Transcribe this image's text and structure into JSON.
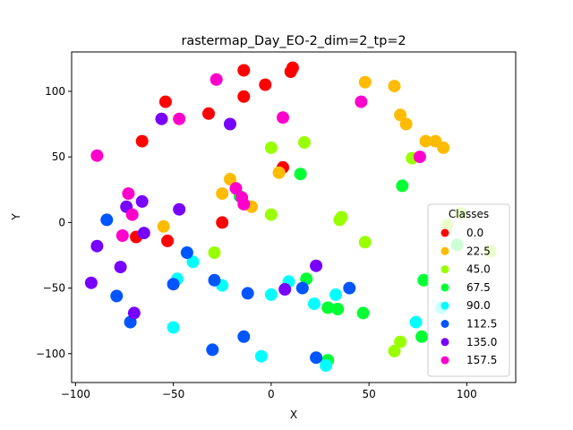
{
  "chart_data": {
    "type": "scatter",
    "title": "rastermap_Day_EO-2_dim=2_tp=2",
    "xlabel": "X",
    "ylabel": "Y",
    "xlim": [
      -102,
      125
    ],
    "ylim": [
      -122,
      130
    ],
    "xticks": [
      -100,
      -50,
      0,
      50,
      100
    ],
    "yticks": [
      -100,
      -50,
      0,
      50,
      100
    ],
    "grid": false,
    "legend": {
      "title": "Classes",
      "placement": "lower-right",
      "entries": [
        "0.0",
        "22.5",
        "45.0",
        "67.5",
        "90.0",
        "112.5",
        "135.0",
        "157.5"
      ]
    },
    "series": [
      {
        "name": "0.0",
        "color": "#ff0000",
        "points": [
          [
            -14,
            116
          ],
          [
            11,
            118
          ],
          [
            10,
            115
          ],
          [
            -3,
            105
          ],
          [
            -14,
            96
          ],
          [
            -54,
            92
          ],
          [
            -32,
            83
          ],
          [
            -66,
            62
          ],
          [
            6,
            42
          ],
          [
            -25,
            0
          ],
          [
            -69,
            -11
          ],
          [
            -53,
            -14
          ]
        ]
      },
      {
        "name": "22.5",
        "color": "#ffbb00",
        "points": [
          [
            48,
            107
          ],
          [
            63,
            104
          ],
          [
            66,
            82
          ],
          [
            69,
            75
          ],
          [
            79,
            62
          ],
          [
            84,
            62
          ],
          [
            88,
            57
          ],
          [
            -21,
            33
          ],
          [
            -25,
            22
          ],
          [
            -10,
            12
          ],
          [
            4,
            38
          ],
          [
            -55,
            -3
          ]
        ]
      },
      {
        "name": "45.0",
        "color": "#99ff00",
        "points": [
          [
            0,
            57
          ],
          [
            17,
            61
          ],
          [
            72,
            49
          ],
          [
            36,
            4
          ],
          [
            35,
            2
          ],
          [
            48,
            -15
          ],
          [
            0,
            6
          ],
          [
            -29,
            -23
          ],
          [
            90,
            -2
          ],
          [
            112,
            -22
          ],
          [
            66,
            -91
          ],
          [
            63,
            -98
          ],
          [
            97,
            7
          ]
        ]
      },
      {
        "name": "67.5",
        "color": "#00ff33",
        "points": [
          [
            15,
            37
          ],
          [
            67,
            28
          ],
          [
            -16,
            20
          ],
          [
            95,
            -17
          ],
          [
            78,
            -44
          ],
          [
            18,
            -43
          ],
          [
            47,
            -69
          ],
          [
            29,
            -65
          ],
          [
            34,
            -66
          ],
          [
            77,
            -87
          ],
          [
            29,
            -105
          ]
        ]
      },
      {
        "name": "90.0",
        "color": "#00ffff",
        "points": [
          [
            -40,
            -30
          ],
          [
            -48,
            -43
          ],
          [
            -25,
            -48
          ],
          [
            0,
            -55
          ],
          [
            9,
            -45
          ],
          [
            22,
            -62
          ],
          [
            33,
            -55
          ],
          [
            74,
            -76
          ],
          [
            87,
            -65
          ],
          [
            -50,
            -80
          ],
          [
            -5,
            -102
          ],
          [
            28,
            -109
          ]
        ]
      },
      {
        "name": "112.5",
        "color": "#0055ff",
        "points": [
          [
            -84,
            2
          ],
          [
            -43,
            -23
          ],
          [
            -50,
            -47
          ],
          [
            -29,
            -44
          ],
          [
            -12,
            -54
          ],
          [
            16,
            -50
          ],
          [
            40,
            -50
          ],
          [
            -79,
            -56
          ],
          [
            -72,
            -76
          ],
          [
            -14,
            -87
          ],
          [
            -30,
            -97
          ],
          [
            23,
            -103
          ]
        ]
      },
      {
        "name": "135.0",
        "color": "#7700ff",
        "points": [
          [
            -56,
            79
          ],
          [
            -21,
            75
          ],
          [
            -74,
            12
          ],
          [
            -66,
            16
          ],
          [
            -47,
            10
          ],
          [
            -65,
            -8
          ],
          [
            -89,
            -18
          ],
          [
            -77,
            -34
          ],
          [
            -92,
            -46
          ],
          [
            -70,
            -69
          ],
          [
            7,
            -51
          ],
          [
            23,
            -33
          ]
        ]
      },
      {
        "name": "157.5",
        "color": "#ff00cc",
        "points": [
          [
            -28,
            109
          ],
          [
            -47,
            79
          ],
          [
            6,
            80
          ],
          [
            46,
            92
          ],
          [
            -89,
            51
          ],
          [
            -73,
            22
          ],
          [
            -71,
            6
          ],
          [
            -18,
            26
          ],
          [
            -15,
            19
          ],
          [
            -14,
            14
          ],
          [
            -76,
            -10
          ],
          [
            76,
            50
          ]
        ]
      }
    ]
  }
}
